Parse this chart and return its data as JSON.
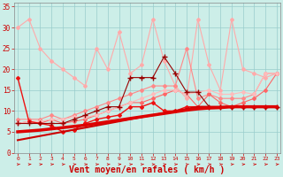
{
  "bg_color": "#cceee8",
  "grid_color": "#99cccc",
  "xlabel": "Vent moyen/en rafales ( km/h )",
  "xlabel_color": "#cc0000",
  "xlabel_fontsize": 7,
  "xtick_labels": [
    "0",
    "1",
    "2",
    "3",
    "4",
    "5",
    "6",
    "7",
    "8",
    "9",
    "10",
    "11",
    "12",
    "13",
    "14",
    "15",
    "16",
    "17",
    "18",
    "19",
    "20",
    "21",
    "22",
    "23"
  ],
  "ytick_vals": [
    0,
    5,
    10,
    15,
    20,
    25,
    30,
    35
  ],
  "xlim": [
    -0.3,
    23.3
  ],
  "ylim": [
    0,
    36
  ],
  "series": [
    {
      "name": "very_light_pink_top",
      "color": "#ffaaaa",
      "lw": 0.8,
      "marker": "D",
      "ms": 2.0,
      "zorder": 2,
      "xs": [
        0,
        1,
        2,
        3,
        4,
        5,
        6,
        7,
        8,
        9,
        10,
        11,
        12,
        13,
        14,
        15,
        16,
        17,
        18,
        19,
        20,
        21,
        22,
        23
      ],
      "ys": [
        30,
        32,
        25,
        22,
        20,
        18,
        16,
        25,
        20,
        29,
        19,
        21,
        32,
        22,
        16,
        13,
        32,
        21,
        15,
        32,
        20,
        19,
        18,
        19
      ]
    },
    {
      "name": "pink_mid",
      "color": "#ff8888",
      "lw": 0.8,
      "marker": "D",
      "ms": 2.0,
      "zorder": 2,
      "xs": [
        0,
        1,
        2,
        3,
        4,
        5,
        6,
        7,
        8,
        9,
        10,
        11,
        12,
        13,
        14,
        15,
        16,
        17,
        18,
        19,
        20,
        21,
        22,
        23
      ],
      "ys": [
        8,
        8,
        8,
        9,
        8,
        9,
        10,
        11,
        12,
        13,
        14,
        15,
        16,
        16,
        16,
        25,
        13,
        14,
        13,
        13,
        13,
        14,
        19,
        19
      ]
    },
    {
      "name": "pink_lower",
      "color": "#ff6666",
      "lw": 0.8,
      "marker": "D",
      "ms": 2.0,
      "zorder": 2,
      "xs": [
        0,
        1,
        2,
        3,
        4,
        5,
        6,
        7,
        8,
        9,
        10,
        11,
        12,
        13,
        14,
        15,
        16,
        17,
        18,
        19,
        20,
        21,
        22,
        23
      ],
      "ys": [
        7,
        7.5,
        7,
        8,
        7,
        7.5,
        8,
        9,
        10,
        11,
        12,
        12,
        13,
        14,
        15,
        14,
        11,
        14,
        12,
        11,
        12,
        13,
        15,
        19
      ]
    },
    {
      "name": "dark_red_plus",
      "color": "#990000",
      "lw": 0.8,
      "marker": "+",
      "ms": 4,
      "zorder": 4,
      "xs": [
        0,
        1,
        2,
        3,
        4,
        5,
        6,
        7,
        8,
        9,
        10,
        11,
        12,
        13,
        14,
        15,
        16,
        17,
        18,
        19,
        20,
        21,
        22,
        23
      ],
      "ys": [
        7,
        7,
        7,
        7,
        7,
        8,
        9,
        10,
        11,
        11,
        18,
        18,
        18,
        23,
        19,
        14.5,
        14.5,
        11,
        11,
        11,
        11,
        11,
        11,
        11
      ]
    },
    {
      "name": "red_bright",
      "color": "#ee1111",
      "lw": 1.0,
      "marker": "D",
      "ms": 2.0,
      "zorder": 3,
      "xs": [
        0,
        1,
        2,
        3,
        4,
        5,
        6,
        7,
        8,
        9,
        10,
        11,
        12,
        13,
        14,
        15,
        16,
        17,
        18,
        19,
        20,
        21,
        22,
        23
      ],
      "ys": [
        18,
        7.5,
        7,
        6.5,
        5,
        5.5,
        7,
        8,
        8.5,
        9,
        11,
        11,
        12,
        10,
        10,
        11,
        11,
        11,
        11,
        11,
        11,
        11,
        11,
        11
      ]
    },
    {
      "name": "red_main_diagonal",
      "color": "#cc0000",
      "lw": 1.5,
      "marker": null,
      "ms": 0,
      "zorder": 5,
      "xs": [
        0,
        1,
        2,
        3,
        4,
        5,
        6,
        7,
        8,
        9,
        10,
        11,
        12,
        13,
        14,
        15,
        16,
        17,
        18,
        19,
        20,
        21,
        22,
        23
      ],
      "ys": [
        3,
        3.5,
        4,
        4.5,
        5,
        5.5,
        6,
        6.5,
        7,
        7.5,
        8,
        8.5,
        9,
        9.5,
        10,
        10.5,
        11,
        11,
        11,
        11,
        11,
        11,
        11,
        11
      ]
    },
    {
      "name": "red_thick_base",
      "color": "#dd0000",
      "lw": 2.5,
      "marker": null,
      "ms": 0,
      "zorder": 5,
      "xs": [
        0,
        1,
        2,
        3,
        4,
        5,
        6,
        7,
        8,
        9,
        10,
        11,
        12,
        13,
        14,
        15,
        16,
        17,
        18,
        19,
        20,
        21,
        22,
        23
      ],
      "ys": [
        5,
        5.2,
        5.4,
        5.7,
        6.0,
        6.3,
        6.6,
        7.0,
        7.4,
        7.8,
        8.2,
        8.6,
        9.0,
        9.4,
        9.8,
        10.2,
        10.5,
        10.7,
        10.8,
        11,
        11,
        11,
        11,
        11
      ]
    },
    {
      "name": "pink_long_rising",
      "color": "#ffbbbb",
      "lw": 0.8,
      "marker": "D",
      "ms": 2.0,
      "zorder": 2,
      "xs": [
        0,
        1,
        2,
        3,
        4,
        5,
        6,
        7,
        8,
        9,
        10,
        11,
        12,
        13,
        14,
        15,
        16,
        17,
        18,
        19,
        20,
        21,
        22,
        23
      ],
      "ys": [
        7,
        7.5,
        7.5,
        8,
        8,
        8.5,
        8.5,
        9,
        10,
        11,
        12,
        13,
        14,
        15,
        15,
        14,
        14.5,
        15,
        14,
        14,
        14.5,
        14,
        19,
        19
      ]
    }
  ]
}
